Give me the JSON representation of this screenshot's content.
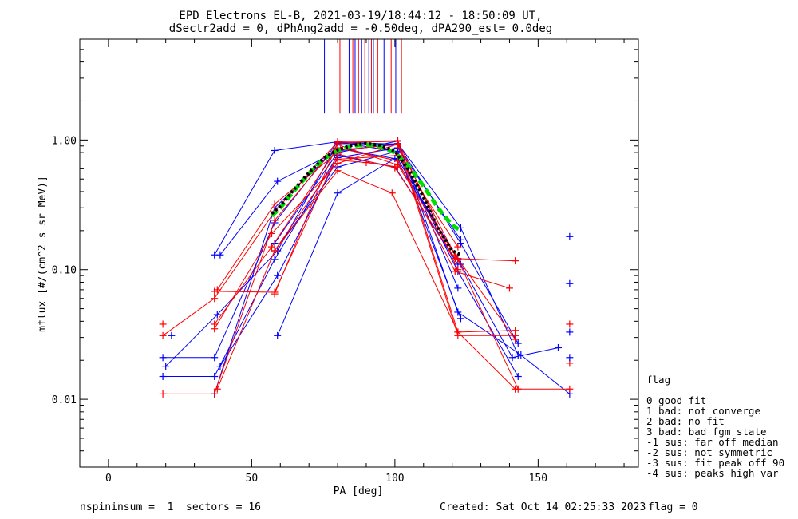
{
  "chart_data": {
    "type": "line",
    "title": "EPD Electrons EL-B, 2021-03-19/18:44:12 - 18:50:09 UT,",
    "subtitle": "dSectr2add = 0, dPhAng2add = -0.50deg, dPA290_est=   0.0deg",
    "xlabel": "PA [deg]",
    "ylabel": "mflux [#/(cm^2 s sr MeV)]",
    "xlim": [
      -10,
      185
    ],
    "ylim": [
      0.003,
      6.0
    ],
    "yscale": "log",
    "x_ticks": [
      0,
      50,
      100,
      150
    ],
    "x_tick_labels": [
      "0",
      "50",
      "100",
      "150"
    ],
    "y_ticks": [
      0.01,
      0.1,
      1.0
    ],
    "y_tick_labels": [
      "0.01",
      "0.10",
      "1.00"
    ],
    "colors": {
      "blue": "#0000ff",
      "red": "#ff0000",
      "green": "#00dd00",
      "black": "#000000"
    },
    "series": [
      {
        "color": "blue",
        "x": [
          19,
          37,
          58,
          80,
          101,
          122
        ],
        "y": [
          0.021,
          0.021,
          0.23,
          0.96,
          0.93,
          0.072
        ]
      },
      {
        "color": "blue",
        "x": [
          20,
          38,
          59,
          80,
          101,
          123,
          143
        ],
        "y": [
          0.018,
          0.045,
          0.14,
          0.94,
          0.93,
          0.16,
          0.027
        ]
      },
      {
        "color": "blue",
        "x": [
          19,
          37,
          58,
          80,
          100,
          122
        ],
        "y": [
          0.015,
          0.015,
          0.12,
          0.76,
          0.62,
          0.11
        ]
      },
      {
        "color": "blue",
        "x": [
          37,
          58,
          80,
          101,
          123,
          141,
          157
        ],
        "y": [
          0.011,
          0.3,
          0.87,
          0.71,
          0.11,
          0.021,
          0.025
        ]
      },
      {
        "color": "blue",
        "x": [
          37,
          58,
          80,
          101,
          122,
          143
        ],
        "y": [
          0.13,
          0.83,
          0.97,
          0.81,
          0.097,
          0.015
        ]
      },
      {
        "color": "blue",
        "x": [
          39,
          59,
          80,
          101,
          123,
          143
        ],
        "y": [
          0.13,
          0.48,
          0.82,
          0.94,
          0.21,
          0.022
        ]
      },
      {
        "color": "blue",
        "x": [
          39,
          59,
          80,
          101,
          123
        ],
        "y": [
          0.018,
          0.09,
          0.73,
          0.87,
          0.17
        ]
      },
      {
        "color": "blue",
        "x": [
          58,
          80,
          101,
          122,
          144,
          161
        ],
        "y": [
          0.16,
          0.8,
          0.98,
          0.047,
          0.022,
          0.011
        ]
      },
      {
        "color": "blue",
        "x": [
          59,
          80,
          100,
          122
        ],
        "y": [
          0.031,
          0.39,
          0.72,
          0.122
        ]
      },
      {
        "color": "blue",
        "x": [
          58,
          80,
          101,
          123
        ],
        "y": [
          0.14,
          0.62,
          0.82,
          0.042
        ]
      },
      {
        "color": "red",
        "x": [
          19,
          37,
          58,
          80,
          101,
          122
        ],
        "y": [
          0.031,
          0.06,
          0.28,
          0.97,
          0.99,
          0.1
        ]
      },
      {
        "color": "red",
        "x": [
          19,
          37,
          58,
          80,
          101,
          122,
          143
        ],
        "y": [
          0.011,
          0.011,
          0.24,
          0.92,
          0.64,
          0.12,
          0.012
        ]
      },
      {
        "color": "red",
        "x": [
          37,
          57,
          80,
          101,
          122,
          142
        ],
        "y": [
          0.035,
          0.19,
          0.66,
          0.93,
          0.031,
          0.031
        ]
      },
      {
        "color": "red",
        "x": [
          37,
          57,
          80,
          101,
          121,
          140
        ],
        "y": [
          0.038,
          0.15,
          0.87,
          0.69,
          0.097,
          0.072
        ]
      },
      {
        "color": "red",
        "x": [
          37,
          58,
          80,
          100,
          121,
          142
        ],
        "y": [
          0.068,
          0.067,
          0.78,
          0.61,
          0.122,
          0.117
        ]
      },
      {
        "color": "red",
        "x": [
          38,
          58,
          80,
          99,
          122,
          142
        ],
        "y": [
          0.012,
          0.14,
          0.58,
          0.39,
          0.033,
          0.034
        ]
      },
      {
        "color": "red",
        "x": [
          38,
          58,
          81,
          101,
          121,
          142
        ],
        "y": [
          0.07,
          0.32,
          0.84,
          0.92,
          0.13,
          0.029
        ]
      },
      {
        "color": "red",
        "x": [
          58,
          80,
          101,
          122,
          142,
          161
        ],
        "y": [
          0.065,
          0.95,
          0.98,
          0.033,
          0.012,
          0.012
        ]
      },
      {
        "color": "red",
        "x": [
          58,
          80,
          101,
          122
        ],
        "y": [
          0.14,
          0.71,
          0.76,
          0.15
        ]
      },
      {
        "color": "red",
        "x": [
          80,
          90,
          101
        ],
        "y": [
          0.7,
          0.67,
          0.62
        ]
      }
    ],
    "isolated_points": [
      {
        "color": "red",
        "x": 19,
        "y": 0.038
      },
      {
        "color": "blue",
        "x": 22,
        "y": 0.031
      },
      {
        "color": "red",
        "x": 161,
        "y": 0.038
      },
      {
        "color": "red",
        "x": 161,
        "y": 0.019
      },
      {
        "color": "blue",
        "x": 161,
        "y": 0.021
      },
      {
        "color": "blue",
        "x": 161,
        "y": 0.033
      },
      {
        "color": "blue",
        "x": 161,
        "y": 0.078
      },
      {
        "color": "blue",
        "x": 161,
        "y": 0.18
      }
    ],
    "fit_curves": [
      {
        "color": "green",
        "style": "dashed-thick",
        "x": [
          57,
          60,
          65,
          70,
          75,
          80,
          85,
          90,
          95,
          100,
          105,
          110,
          115,
          120,
          123
        ],
        "y": [
          0.26,
          0.3,
          0.41,
          0.55,
          0.71,
          0.83,
          0.9,
          0.92,
          0.89,
          0.8,
          0.62,
          0.44,
          0.3,
          0.22,
          0.2
        ]
      },
      {
        "color": "black",
        "style": "dotted-thick",
        "x": [
          57,
          60,
          65,
          70,
          75,
          80,
          85,
          90,
          95,
          100,
          105,
          110,
          115,
          120,
          123
        ],
        "y": [
          0.27,
          0.31,
          0.42,
          0.56,
          0.72,
          0.84,
          0.91,
          0.94,
          0.91,
          0.82,
          0.58,
          0.36,
          0.21,
          0.14,
          0.13
        ]
      }
    ],
    "vertical_markers": [
      {
        "color": "blue",
        "x": 75.4
      },
      {
        "color": "red",
        "x": 80.8
      },
      {
        "color": "blue",
        "x": 84.0
      },
      {
        "color": "red",
        "x": 85.3
      },
      {
        "color": "blue",
        "x": 86.1
      },
      {
        "color": "red",
        "x": 87.3
      },
      {
        "color": "blue",
        "x": 88.4
      },
      {
        "color": "red",
        "x": 89.5
      },
      {
        "color": "blue",
        "x": 90.9
      },
      {
        "color": "red",
        "x": 91.8
      },
      {
        "color": "blue",
        "x": 92.5
      },
      {
        "color": "red",
        "x": 94.0
      },
      {
        "color": "blue",
        "x": 96.2
      },
      {
        "color": "red",
        "x": 98.7
      },
      {
        "color": "blue",
        "x": 100.3
      },
      {
        "color": "red",
        "x": 102.3
      }
    ],
    "grid": false,
    "legend": {
      "placement": "bottom-right",
      "title": "flag",
      "entries": [
        " 0 good fit",
        " 1 bad: not converge",
        " 2 bad: no fit",
        " 3 bad: bad fgm state",
        "-1 sus: far off median",
        "-2 sus: not symmetric",
        "-3 sus: fit peak off 90",
        "-4 sus: peaks high var"
      ]
    }
  },
  "footer": {
    "left": "nspininsum =  1  sectors = 16",
    "center": "Created: Sat Oct 14 02:25:33 2023",
    "right": "flag = 0"
  }
}
